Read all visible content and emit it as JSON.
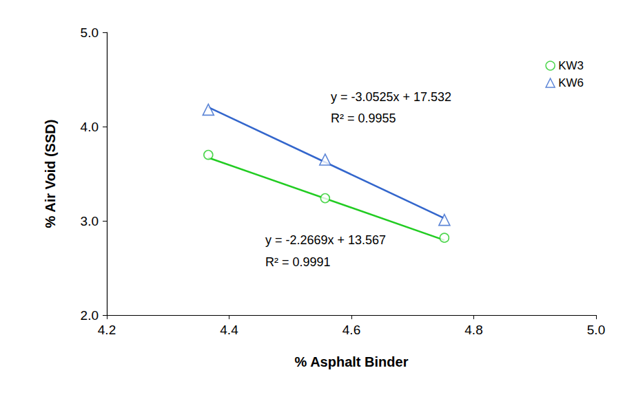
{
  "chart_data": {
    "type": "scatter",
    "x_label": "% Asphalt Binder",
    "y_label": "% Air Void (SSD)",
    "xlim": [
      4.2,
      5.0
    ],
    "xticks": [
      4.2,
      4.4,
      4.6,
      4.8,
      {
        "value": 5,
        "label": "5.0"
      }
    ],
    "ylim": [
      2.0,
      5.0
    ],
    "yticks": [
      {
        "value": 2,
        "label": "2.0"
      },
      {
        "value": 3,
        "label": "3.0"
      },
      {
        "value": 4,
        "label": "4.0"
      },
      {
        "value": 5,
        "label": "5.0"
      }
    ],
    "grid": false,
    "legend": "upper right",
    "series": [
      {
        "name": "KW3",
        "color": "#22cc22",
        "marker": "circle",
        "x": [
          4.366,
          4.557,
          4.752
        ],
        "values": [
          3.7,
          3.24,
          2.82
        ],
        "trendline": {
          "x": [
            4.366,
            4.752
          ],
          "values": [
            3.67,
            2.795
          ],
          "equation": "y = -2.2669x + 13.567",
          "r_squared": "R² = 0.9991"
        }
      },
      {
        "name": "KW6",
        "color": "#3366cc",
        "marker": "triangle",
        "x": [
          4.366,
          4.557,
          4.752
        ],
        "values": [
          4.18,
          3.65,
          3.01
        ],
        "trendline": {
          "x": [
            4.366,
            4.752
          ],
          "values": [
            4.205,
            3.027
          ],
          "equation": "y = -3.0525x + 17.532",
          "r_squared": "R² = 0.9955"
        }
      }
    ]
  }
}
